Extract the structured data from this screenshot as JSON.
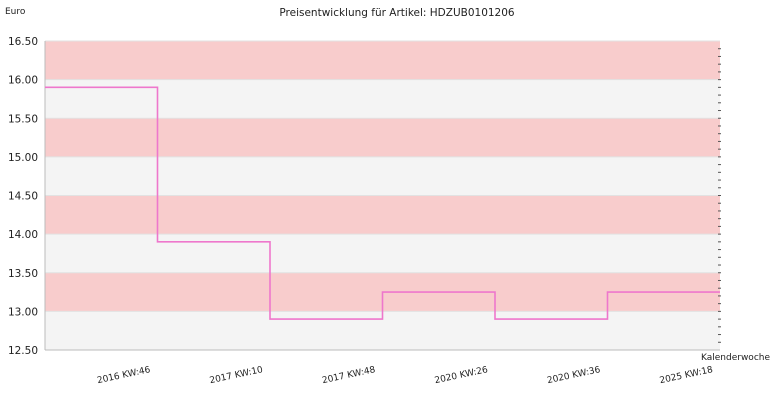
{
  "chart_data": {
    "type": "line",
    "title": "Preisentwicklung für Artikel: HDZUB0101206",
    "ylabel": "Euro",
    "xlabel": "Kalenderwoche",
    "ylim": [
      12.5,
      16.5
    ],
    "y_ticks": [
      "16.50",
      "16.00",
      "15.50",
      "15.00",
      "14.50",
      "14.00",
      "13.50",
      "13.00",
      "12.50"
    ],
    "categories": [
      "2016 KW:46",
      "2017 KW:10",
      "2017 KW:48",
      "2020 KW:26",
      "2020 KW:36",
      "2025 KW:18"
    ],
    "line_shape": "step",
    "series": [
      {
        "values": [
          15.9,
          13.9,
          12.9,
          13.25,
          12.9,
          13.25
        ]
      }
    ],
    "band_colors": [
      "#f8cccc",
      "#f4f4f4"
    ],
    "line_color": "#ee77cc",
    "grid": true
  }
}
